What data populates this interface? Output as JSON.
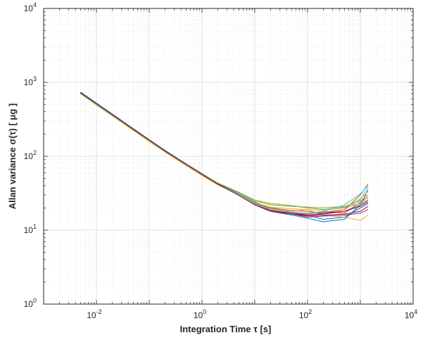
{
  "chart_data": {
    "type": "line",
    "xlabel": "Integration Time τ [s]",
    "ylabel": "Allan variance σ(τ) [ μg ]",
    "xscale": "log",
    "yscale": "log",
    "xlim": [
      0.001,
      10000
    ],
    "ylim": [
      1,
      10000
    ],
    "x_ticks": [
      {
        "base": "10",
        "exp": "-2",
        "value": 0.01
      },
      {
        "base": "10",
        "exp": "0",
        "value": 1
      },
      {
        "base": "10",
        "exp": "2",
        "value": 100
      },
      {
        "base": "10",
        "exp": "4",
        "value": 10000
      }
    ],
    "y_ticks": [
      {
        "base": "10",
        "exp": "0",
        "value": 1
      },
      {
        "base": "10",
        "exp": "1",
        "value": 10
      },
      {
        "base": "10",
        "exp": "2",
        "value": 100
      },
      {
        "base": "10",
        "exp": "3",
        "value": 1000
      },
      {
        "base": "10",
        "exp": "4",
        "value": 10000
      }
    ],
    "grid": true,
    "minor_grid": true,
    "legend": "none",
    "x": [
      0.005,
      0.01,
      0.02,
      0.05,
      0.1,
      0.2,
      0.5,
      1,
      2,
      5,
      10,
      20,
      50,
      100,
      200,
      500,
      1000,
      1400
    ],
    "series": [
      {
        "color": "#0072BD",
        "values": [
          740,
          525,
          372,
          236,
          168,
          120,
          79,
          58,
          43,
          31,
          24,
          20,
          17.5,
          16,
          14,
          15,
          20,
          23
        ]
      },
      {
        "color": "#D95319",
        "values": [
          715,
          505,
          358,
          228,
          162,
          116,
          76,
          56,
          42,
          30.5,
          23.5,
          19.5,
          17,
          16.5,
          18,
          17,
          24,
          28
        ]
      },
      {
        "color": "#EDB120",
        "values": [
          700,
          495,
          352,
          224,
          159,
          114,
          75,
          55,
          41,
          30,
          23,
          19.5,
          18,
          19,
          16,
          15,
          13.5,
          16
        ]
      },
      {
        "color": "#7E2F8E",
        "values": [
          720,
          510,
          362,
          230,
          163,
          117,
          77,
          56,
          41.5,
          30,
          22.5,
          18.5,
          17,
          16,
          16.5,
          18,
          22,
          25
        ]
      },
      {
        "color": "#77AC30",
        "values": [
          710,
          503,
          358,
          228,
          162,
          116,
          77,
          57,
          43,
          32,
          25,
          22,
          21,
          20.5,
          20,
          21,
          25,
          30
        ]
      },
      {
        "color": "#4DBEEE",
        "values": [
          725,
          515,
          366,
          232,
          165,
          118,
          78,
          57,
          42,
          30.5,
          23,
          19,
          17.5,
          17,
          17.5,
          19,
          26,
          38
        ]
      },
      {
        "color": "#A2142F",
        "values": [
          730,
          518,
          368,
          234,
          166,
          119,
          78,
          57,
          42,
          30,
          22.5,
          18.5,
          16.5,
          15.5,
          16,
          16.5,
          18,
          21
        ]
      },
      {
        "color": "#0072BD",
        "values": [
          735,
          520,
          370,
          235,
          167,
          119,
          79,
          58,
          43,
          30.5,
          22,
          18,
          16,
          14.5,
          13,
          14,
          22,
          35
        ]
      },
      {
        "color": "#D95319",
        "values": [
          705,
          500,
          356,
          226,
          161,
          115,
          76,
          56,
          41.5,
          30,
          23,
          20,
          18.5,
          18,
          17,
          19,
          30,
          42
        ]
      },
      {
        "color": "#EDB120",
        "values": [
          712,
          505,
          359,
          229,
          163,
          116,
          77,
          56.5,
          42,
          30.5,
          23.5,
          20.5,
          19.5,
          19,
          18.5,
          20,
          27,
          33
        ]
      },
      {
        "color": "#7E2F8E",
        "values": [
          718,
          508,
          362,
          231,
          164,
          117,
          77.5,
          57,
          42,
          30,
          22.5,
          18,
          16.5,
          15,
          15.5,
          16,
          17,
          19
        ]
      },
      {
        "color": "#77AC30",
        "values": [
          708,
          502,
          357,
          227,
          162,
          116,
          77,
          57,
          43.5,
          32.5,
          25.5,
          23,
          21.5,
          20,
          19,
          20.5,
          23,
          26
        ]
      },
      {
        "color": "#4DBEEE",
        "values": [
          722,
          512,
          364,
          232,
          165,
          118,
          78,
          57,
          42,
          30,
          22.5,
          19,
          17.5,
          17,
          18,
          22,
          31,
          40
        ]
      },
      {
        "color": "#A2142F",
        "values": [
          727,
          516,
          367,
          233,
          166,
          118,
          78,
          57,
          42,
          29.5,
          22,
          18,
          16.5,
          16,
          17,
          18,
          21,
          24
        ]
      }
    ]
  }
}
